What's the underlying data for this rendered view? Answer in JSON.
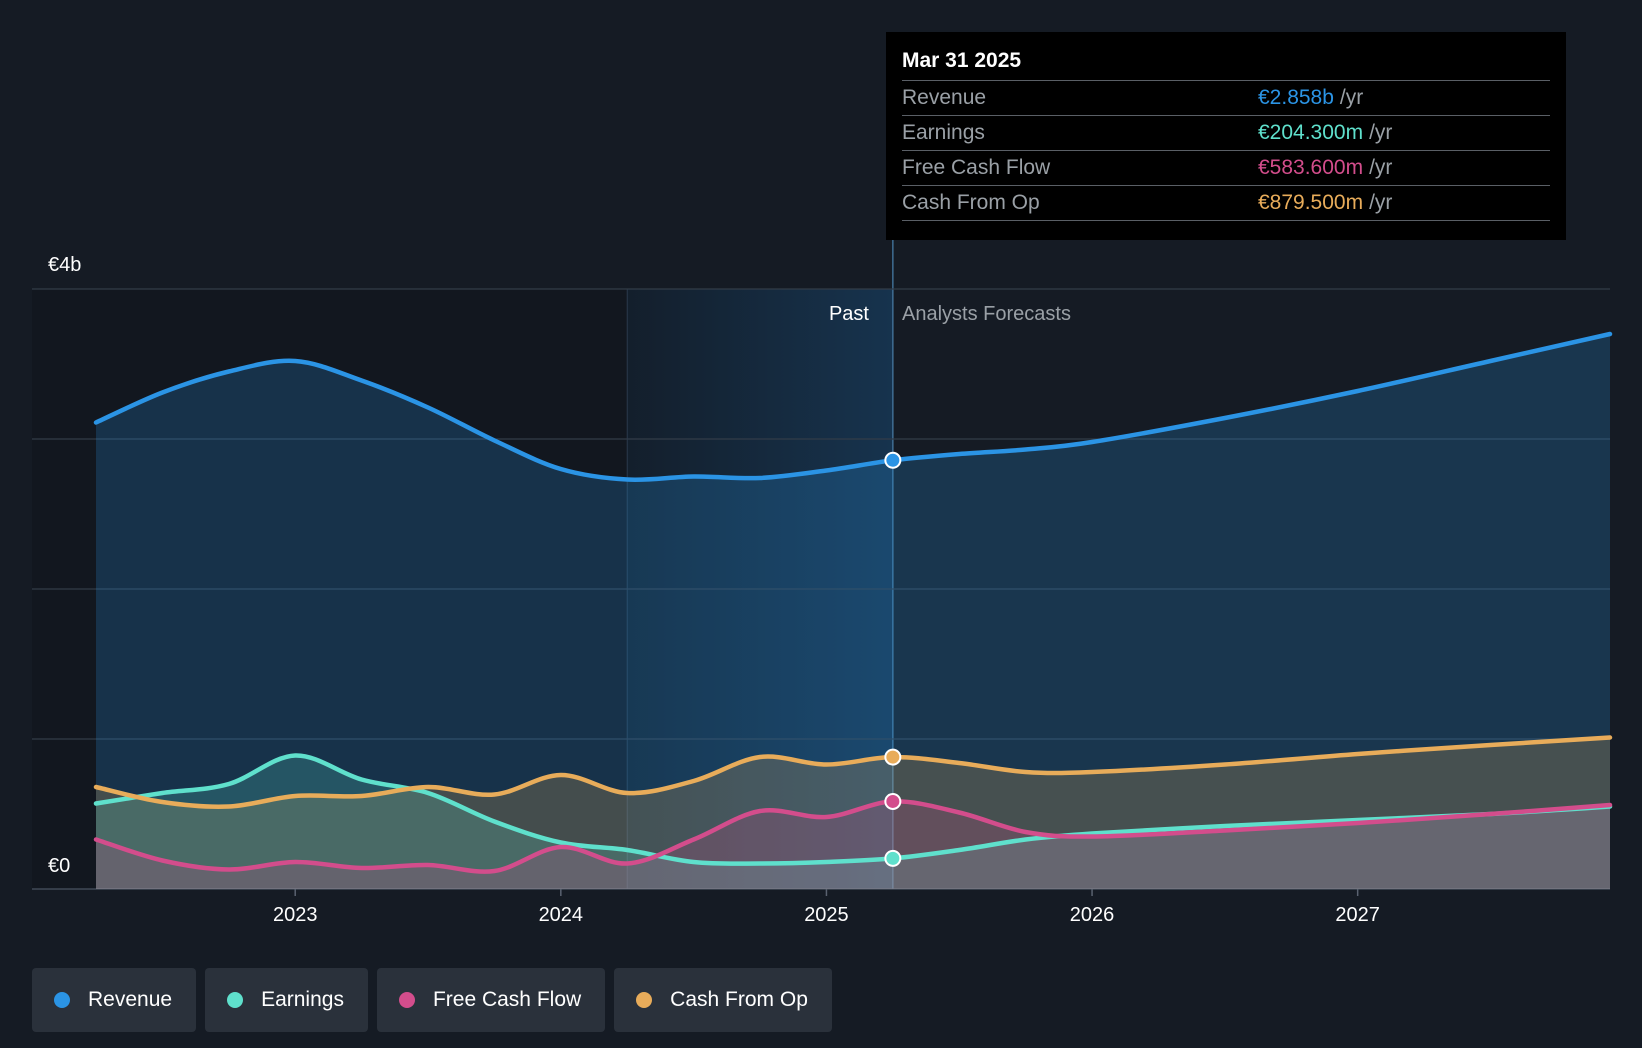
{
  "chart_data": {
    "type": "area",
    "y_axis": {
      "top_label": "€4b",
      "bottom_label": "€0",
      "ylim": [
        0,
        4
      ],
      "unit": "€b"
    },
    "x_axis": {
      "ticks": [
        "2023",
        "2024",
        "2025",
        "2026",
        "2027"
      ],
      "range": [
        2022.25,
        2027.95
      ]
    },
    "divider_x": 2025.25,
    "past_highlight_start": 2024.25,
    "past_label": "Past",
    "forecast_label": "Analysts Forecasts",
    "series": [
      {
        "name": "Revenue",
        "key": "revenue",
        "color": "#2b94e5",
        "points": [
          [
            2022.25,
            3.11
          ],
          [
            2022.5,
            3.31
          ],
          [
            2022.75,
            3.45
          ],
          [
            2023.0,
            3.52
          ],
          [
            2023.25,
            3.39
          ],
          [
            2023.5,
            3.21
          ],
          [
            2023.75,
            2.99
          ],
          [
            2024.0,
            2.8
          ],
          [
            2024.25,
            2.73
          ],
          [
            2024.5,
            2.75
          ],
          [
            2024.75,
            2.74
          ],
          [
            2025.0,
            2.79
          ],
          [
            2025.25,
            2.858
          ],
          [
            2025.5,
            2.9
          ],
          [
            2025.75,
            2.93
          ],
          [
            2026.0,
            2.98
          ],
          [
            2026.5,
            3.14
          ],
          [
            2027.0,
            3.32
          ],
          [
            2027.5,
            3.52
          ],
          [
            2027.95,
            3.7
          ]
        ]
      },
      {
        "name": "Earnings",
        "key": "earnings",
        "color": "#5fe0cc",
        "points": [
          [
            2022.25,
            0.57
          ],
          [
            2022.5,
            0.64
          ],
          [
            2022.75,
            0.7
          ],
          [
            2023.0,
            0.89
          ],
          [
            2023.25,
            0.73
          ],
          [
            2023.5,
            0.64
          ],
          [
            2023.75,
            0.45
          ],
          [
            2024.0,
            0.31
          ],
          [
            2024.25,
            0.26
          ],
          [
            2024.5,
            0.18
          ],
          [
            2024.75,
            0.17
          ],
          [
            2025.0,
            0.18
          ],
          [
            2025.25,
            0.2043
          ],
          [
            2025.5,
            0.26
          ],
          [
            2025.75,
            0.33
          ],
          [
            2026.0,
            0.37
          ],
          [
            2026.5,
            0.42
          ],
          [
            2027.0,
            0.46
          ],
          [
            2027.5,
            0.5
          ],
          [
            2027.95,
            0.55
          ]
        ]
      },
      {
        "name": "Free Cash Flow",
        "key": "fcf",
        "color": "#d34d8c",
        "points": [
          [
            2022.25,
            0.33
          ],
          [
            2022.5,
            0.19
          ],
          [
            2022.75,
            0.13
          ],
          [
            2023.0,
            0.18
          ],
          [
            2023.25,
            0.14
          ],
          [
            2023.5,
            0.16
          ],
          [
            2023.75,
            0.12
          ],
          [
            2024.0,
            0.28
          ],
          [
            2024.25,
            0.17
          ],
          [
            2024.5,
            0.33
          ],
          [
            2024.75,
            0.52
          ],
          [
            2025.0,
            0.48
          ],
          [
            2025.25,
            0.5836
          ],
          [
            2025.5,
            0.51
          ],
          [
            2025.75,
            0.38
          ],
          [
            2026.0,
            0.35
          ],
          [
            2026.5,
            0.39
          ],
          [
            2027.0,
            0.44
          ],
          [
            2027.5,
            0.5
          ],
          [
            2027.95,
            0.56
          ]
        ]
      },
      {
        "name": "Cash From Op",
        "key": "cfo",
        "color": "#e8ac5a",
        "points": [
          [
            2022.25,
            0.68
          ],
          [
            2022.5,
            0.58
          ],
          [
            2022.75,
            0.55
          ],
          [
            2023.0,
            0.62
          ],
          [
            2023.25,
            0.62
          ],
          [
            2023.5,
            0.68
          ],
          [
            2023.75,
            0.63
          ],
          [
            2024.0,
            0.76
          ],
          [
            2024.25,
            0.64
          ],
          [
            2024.5,
            0.72
          ],
          [
            2024.75,
            0.88
          ],
          [
            2025.0,
            0.83
          ],
          [
            2025.25,
            0.8795
          ],
          [
            2025.5,
            0.84
          ],
          [
            2025.75,
            0.78
          ],
          [
            2026.0,
            0.78
          ],
          [
            2026.5,
            0.83
          ],
          [
            2027.0,
            0.9
          ],
          [
            2027.5,
            0.96
          ],
          [
            2027.95,
            1.01
          ]
        ]
      }
    ]
  },
  "tooltip": {
    "date": "Mar 31 2025",
    "rows": [
      {
        "label": "Revenue",
        "value": "€2.858b",
        "unit": "/yr",
        "color": "#2b94e5"
      },
      {
        "label": "Earnings",
        "value": "€204.300m",
        "unit": "/yr",
        "color": "#5fe0cc"
      },
      {
        "label": "Free Cash Flow",
        "value": "€583.600m",
        "unit": "/yr",
        "color": "#d34d8c"
      },
      {
        "label": "Cash From Op",
        "value": "€879.500m",
        "unit": "/yr",
        "color": "#e8ac5a"
      }
    ]
  },
  "legend": [
    {
      "label": "Revenue",
      "color": "#2b94e5"
    },
    {
      "label": "Earnings",
      "color": "#5fe0cc"
    },
    {
      "label": "Free Cash Flow",
      "color": "#d34d8c"
    },
    {
      "label": "Cash From Op",
      "color": "#e8ac5a"
    }
  ],
  "colors": {
    "background": "#151b24",
    "grid": "#3a4350",
    "past_highlight": "#16344f",
    "muted_text": "#9aa0a6"
  }
}
